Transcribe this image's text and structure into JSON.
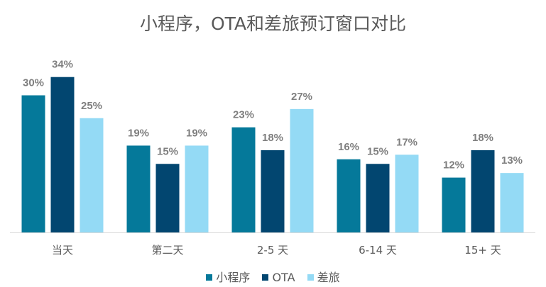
{
  "chart_data": {
    "type": "bar",
    "title": "小程序，OTA和差旅预订窗口对比",
    "xlabel": "",
    "ylabel": "",
    "categories": [
      "当天",
      "第二天",
      "2-5 天",
      "6-14 天",
      "15+ 天"
    ],
    "series": [
      {
        "name": "小程序",
        "color": "#05799A",
        "values": [
          30,
          19,
          23,
          16,
          12
        ],
        "labels": [
          "30%",
          "19%",
          "23%",
          "16%",
          "12%"
        ]
      },
      {
        "name": "OTA",
        "color": "#024670",
        "values": [
          34,
          15,
          18,
          15,
          18
        ],
        "labels": [
          "34%",
          "15%",
          "18%",
          "15%",
          "18%"
        ]
      },
      {
        "name": "差旅",
        "color": "#94DAF5",
        "values": [
          25,
          19,
          27,
          17,
          13
        ],
        "labels": [
          "25%",
          "19%",
          "27%",
          "17%",
          "13%"
        ]
      }
    ],
    "ylim": [
      0,
      34
    ],
    "grid": false,
    "legend_position": "bottom"
  }
}
